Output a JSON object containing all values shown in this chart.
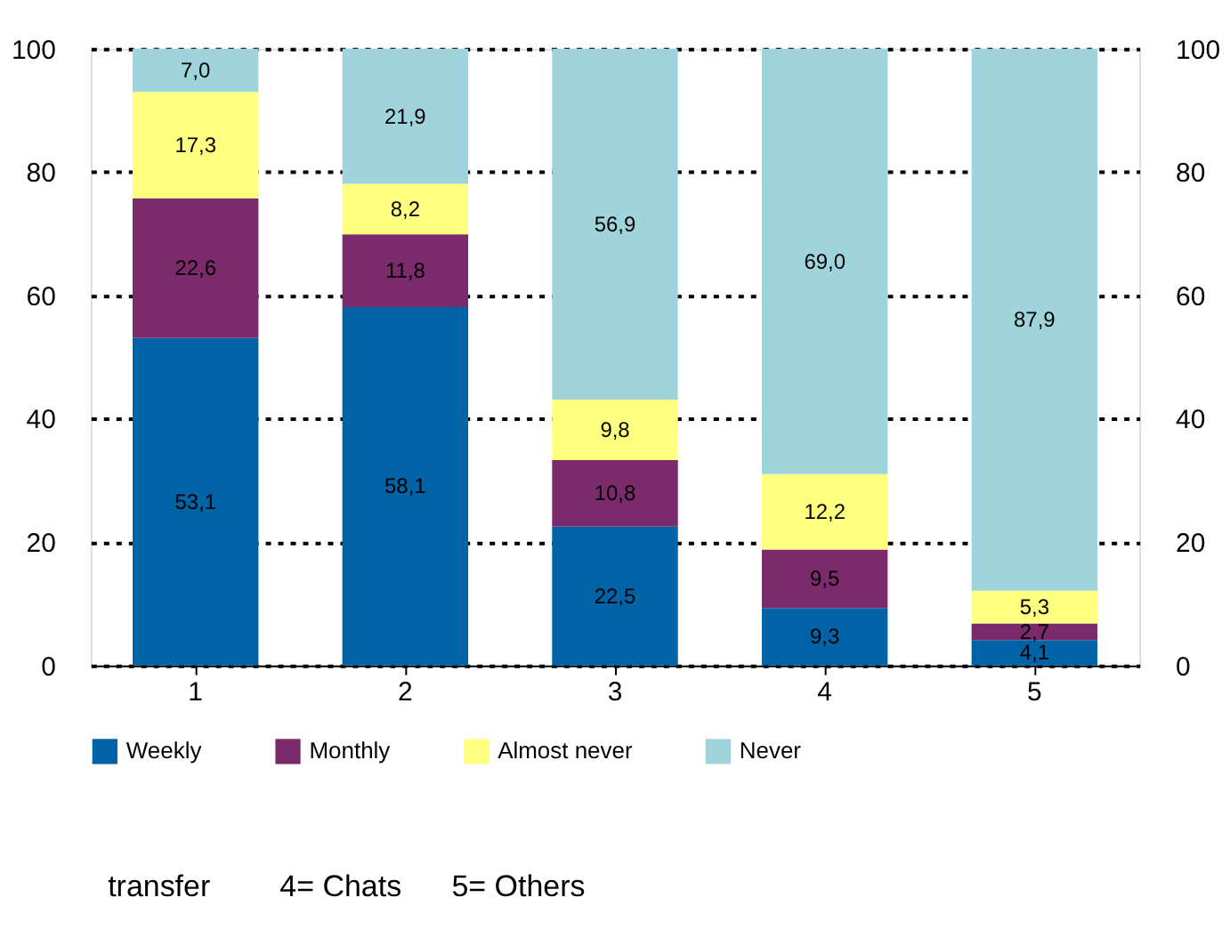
{
  "chart_data": {
    "type": "bar",
    "stacked": true,
    "categories": [
      "1",
      "2",
      "3",
      "4",
      "5"
    ],
    "series": [
      {
        "name": "Weekly",
        "color": "#0063a6",
        "values": [
          53.1,
          58.1,
          22.5,
          9.3,
          4.1
        ],
        "value_labels": [
          "53,1",
          "58,1",
          "22,5",
          "9,3",
          "4,1"
        ]
      },
      {
        "name": "Monthly",
        "color": "#7b2a6b",
        "values": [
          22.6,
          11.8,
          10.8,
          9.5,
          2.7
        ],
        "value_labels": [
          "22,6",
          "11,8",
          "10,8",
          "9,5",
          "2,7"
        ]
      },
      {
        "name": "Almost never",
        "color": "#ffff80",
        "values": [
          17.3,
          8.2,
          9.8,
          12.2,
          5.3
        ],
        "value_labels": [
          "17,3",
          "8,2",
          "9,8",
          "12,2",
          "5,3"
        ]
      },
      {
        "name": "Never",
        "color": "#9fd4dc",
        "values": [
          7.0,
          21.9,
          56.9,
          69.0,
          87.9
        ],
        "value_labels": [
          "7,0",
          "21,9",
          "56,9",
          "69,0",
          "87,9"
        ]
      }
    ],
    "ylim": [
      0,
      100
    ],
    "yticks": [
      0,
      20,
      40,
      60,
      80,
      100
    ],
    "y2lim": [
      0,
      100
    ],
    "y2ticks": [
      0,
      20,
      40,
      60,
      80,
      100
    ],
    "grid": "y",
    "legend": "bottom",
    "annotations": [
      "transfer",
      "4= Chats",
      "5= Others"
    ]
  }
}
